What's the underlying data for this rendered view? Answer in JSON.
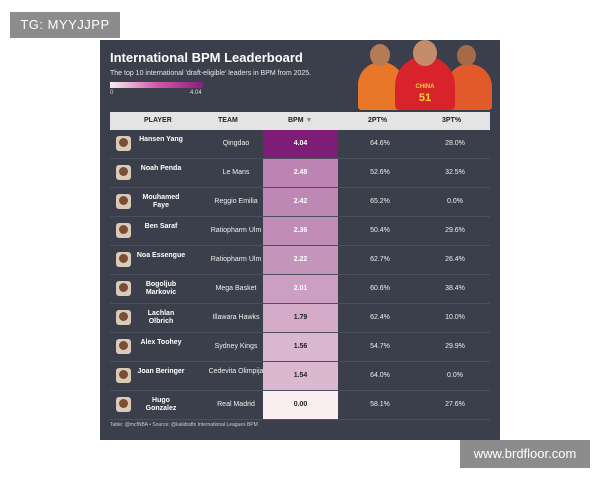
{
  "watermarks": {
    "top_left": "TG: MYYJJPP",
    "bottom_right": "www.brdfloor.com"
  },
  "card": {
    "title": "International BPM Leaderboard",
    "subtitle": "The top 10 international 'draft-eligible' leaders in BPM from 2025.",
    "legend": {
      "min": "0",
      "max": "4.04"
    },
    "header": {
      "player": "PLAYER",
      "team": "TEAM",
      "bpm": "BPM",
      "bpm_sort_icon": "sort-down-icon",
      "p2": "2PT%",
      "p3": "3PT%"
    },
    "footer": "Table: @mcfNBA • Source: @kalidrafts International Leagues BPM",
    "jersey_text": "CHINA",
    "jersey_number": "51",
    "colors": {
      "bpm_low": "#fbeef0",
      "bpm_high": "#7d1d76",
      "background": "#3a3f4b"
    }
  },
  "rows": [
    {
      "player": "Hansen Yang",
      "team": "Qingdao",
      "bpm": "4.04",
      "p2": "64.6%",
      "p3": "28.0%"
    },
    {
      "player": "Noah Penda",
      "team": "Le Mans",
      "bpm": "2.48",
      "p2": "52.6%",
      "p3": "32.5%"
    },
    {
      "player": "Mouhamed Faye",
      "team": "Reggio Emilia",
      "bpm": "2.42",
      "p2": "65.2%",
      "p3": "0.0%"
    },
    {
      "player": "Ben Saraf",
      "team": "Ratiopharm Ulm",
      "bpm": "2.36",
      "p2": "50.4%",
      "p3": "29.6%"
    },
    {
      "player": "Noa Essengue",
      "team": "Ratiopharm Ulm",
      "bpm": "2.22",
      "p2": "62.7%",
      "p3": "26.4%"
    },
    {
      "player": "Bogoljub Markovic",
      "team": "Mega Basket",
      "bpm": "2.01",
      "p2": "60.6%",
      "p3": "38.4%"
    },
    {
      "player": "Lachlan Olbrich",
      "team": "Illawara Hawks",
      "bpm": "1.79",
      "p2": "62.4%",
      "p3": "10.0%"
    },
    {
      "player": "Alex Toohey",
      "team": "Sydney Kings",
      "bpm": "1.56",
      "p2": "54.7%",
      "p3": "29.9%"
    },
    {
      "player": "Joan Beringer",
      "team": "Cedevita Olimpija",
      "bpm": "1.54",
      "p2": "64.0%",
      "p3": "0.0%"
    },
    {
      "player": "Hugo Gonzalez",
      "team": "Real Madrid",
      "bpm": "0.00",
      "p2": "58.1%",
      "p3": "27.6%"
    }
  ]
}
